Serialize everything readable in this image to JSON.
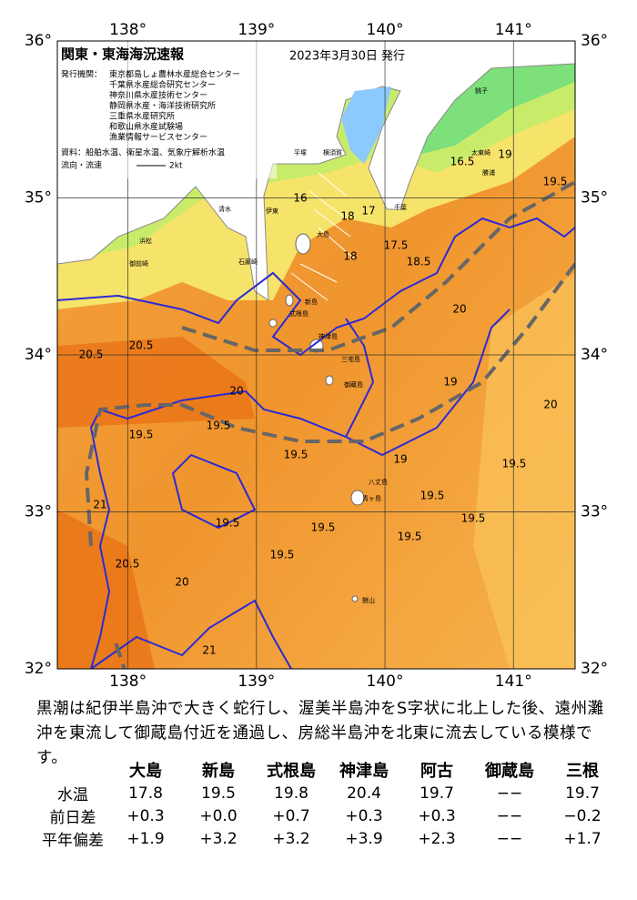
{
  "map": {
    "title": "関東・東海海況速報",
    "issued": "2023年3月30日 発行",
    "issuer_label": "発行機関：",
    "issuers": [
      "東京都島しょ農林水産総合センター",
      "千葉県水産総合研究センター",
      "神奈川県水産技術センター",
      "静岡県水産・海洋技術研究所",
      "三重県水産研究所",
      "和歌山県水産試験場",
      "漁業情報サービスセンター"
    ],
    "source": "資料：船舶水温、衛星水温、気象庁解析水温",
    "current_legend": "流向・流速",
    "current_speed": "2kt",
    "lonlim": [
      137.45,
      141.48
    ],
    "latlim": [
      32,
      36
    ],
    "lon_ticks": [
      {
        "value": 138,
        "label": "138°"
      },
      {
        "value": 139,
        "label": "139°"
      },
      {
        "value": 140,
        "label": "140°"
      },
      {
        "value": 141,
        "label": "141°"
      }
    ],
    "lat_ticks": [
      {
        "value": 32,
        "label": "32°"
      },
      {
        "value": 33,
        "label": "33°"
      },
      {
        "value": 34,
        "label": "34°"
      },
      {
        "value": 35,
        "label": "35°"
      },
      {
        "value": 36,
        "label": "36°"
      }
    ],
    "contour_labels": [
      "16",
      "18",
      "17",
      "17.5",
      "18",
      "18.5",
      "16.5",
      "19",
      "19.5",
      "20",
      "20.5",
      "20.5",
      "19.5",
      "19.5",
      "19.5",
      "19.5",
      "19.5",
      "19.5",
      "19.5",
      "19.5",
      "20.5",
      "21",
      "21",
      "20",
      "20",
      "19.5",
      "19",
      "19.5",
      "19",
      "20"
    ],
    "places": [
      "大島",
      "新島",
      "式根島",
      "神津島",
      "三宅島",
      "御蔵島",
      "八丈島",
      "青ヶ島",
      "館山",
      "千葉",
      "平塚",
      "横須賀",
      "伊東",
      "石廊崎",
      "浜松",
      "御前崎",
      "清水",
      "銚子",
      "太東崎",
      "勝浦"
    ]
  },
  "description": "黒潮は紀伊半島沖で大きく蛇行し、渥美半島沖をS字状に北上した後、遠州灘沖を東流して御蔵島付近を通過し、房総半島沖を北東に流去している模様です。",
  "table": {
    "columns": [
      "大島",
      "新島",
      "式根島",
      "神津島",
      "阿古",
      "御蔵島",
      "三根"
    ],
    "rows": [
      {
        "label": "水温",
        "cells": [
          "17.8",
          "19.5",
          "19.8",
          "20.4",
          "19.7",
          "−−",
          "19.7"
        ]
      },
      {
        "label": "前日差",
        "cells": [
          "+0.3",
          "+0.0",
          "+0.7",
          "+0.3",
          "+0.3",
          "−−",
          "−0.2"
        ]
      },
      {
        "label": "平年偏差",
        "cells": [
          "+1.9",
          "+3.2",
          "+3.2",
          "+3.9",
          "+2.3",
          "−−",
          "+1.7"
        ]
      }
    ]
  }
}
